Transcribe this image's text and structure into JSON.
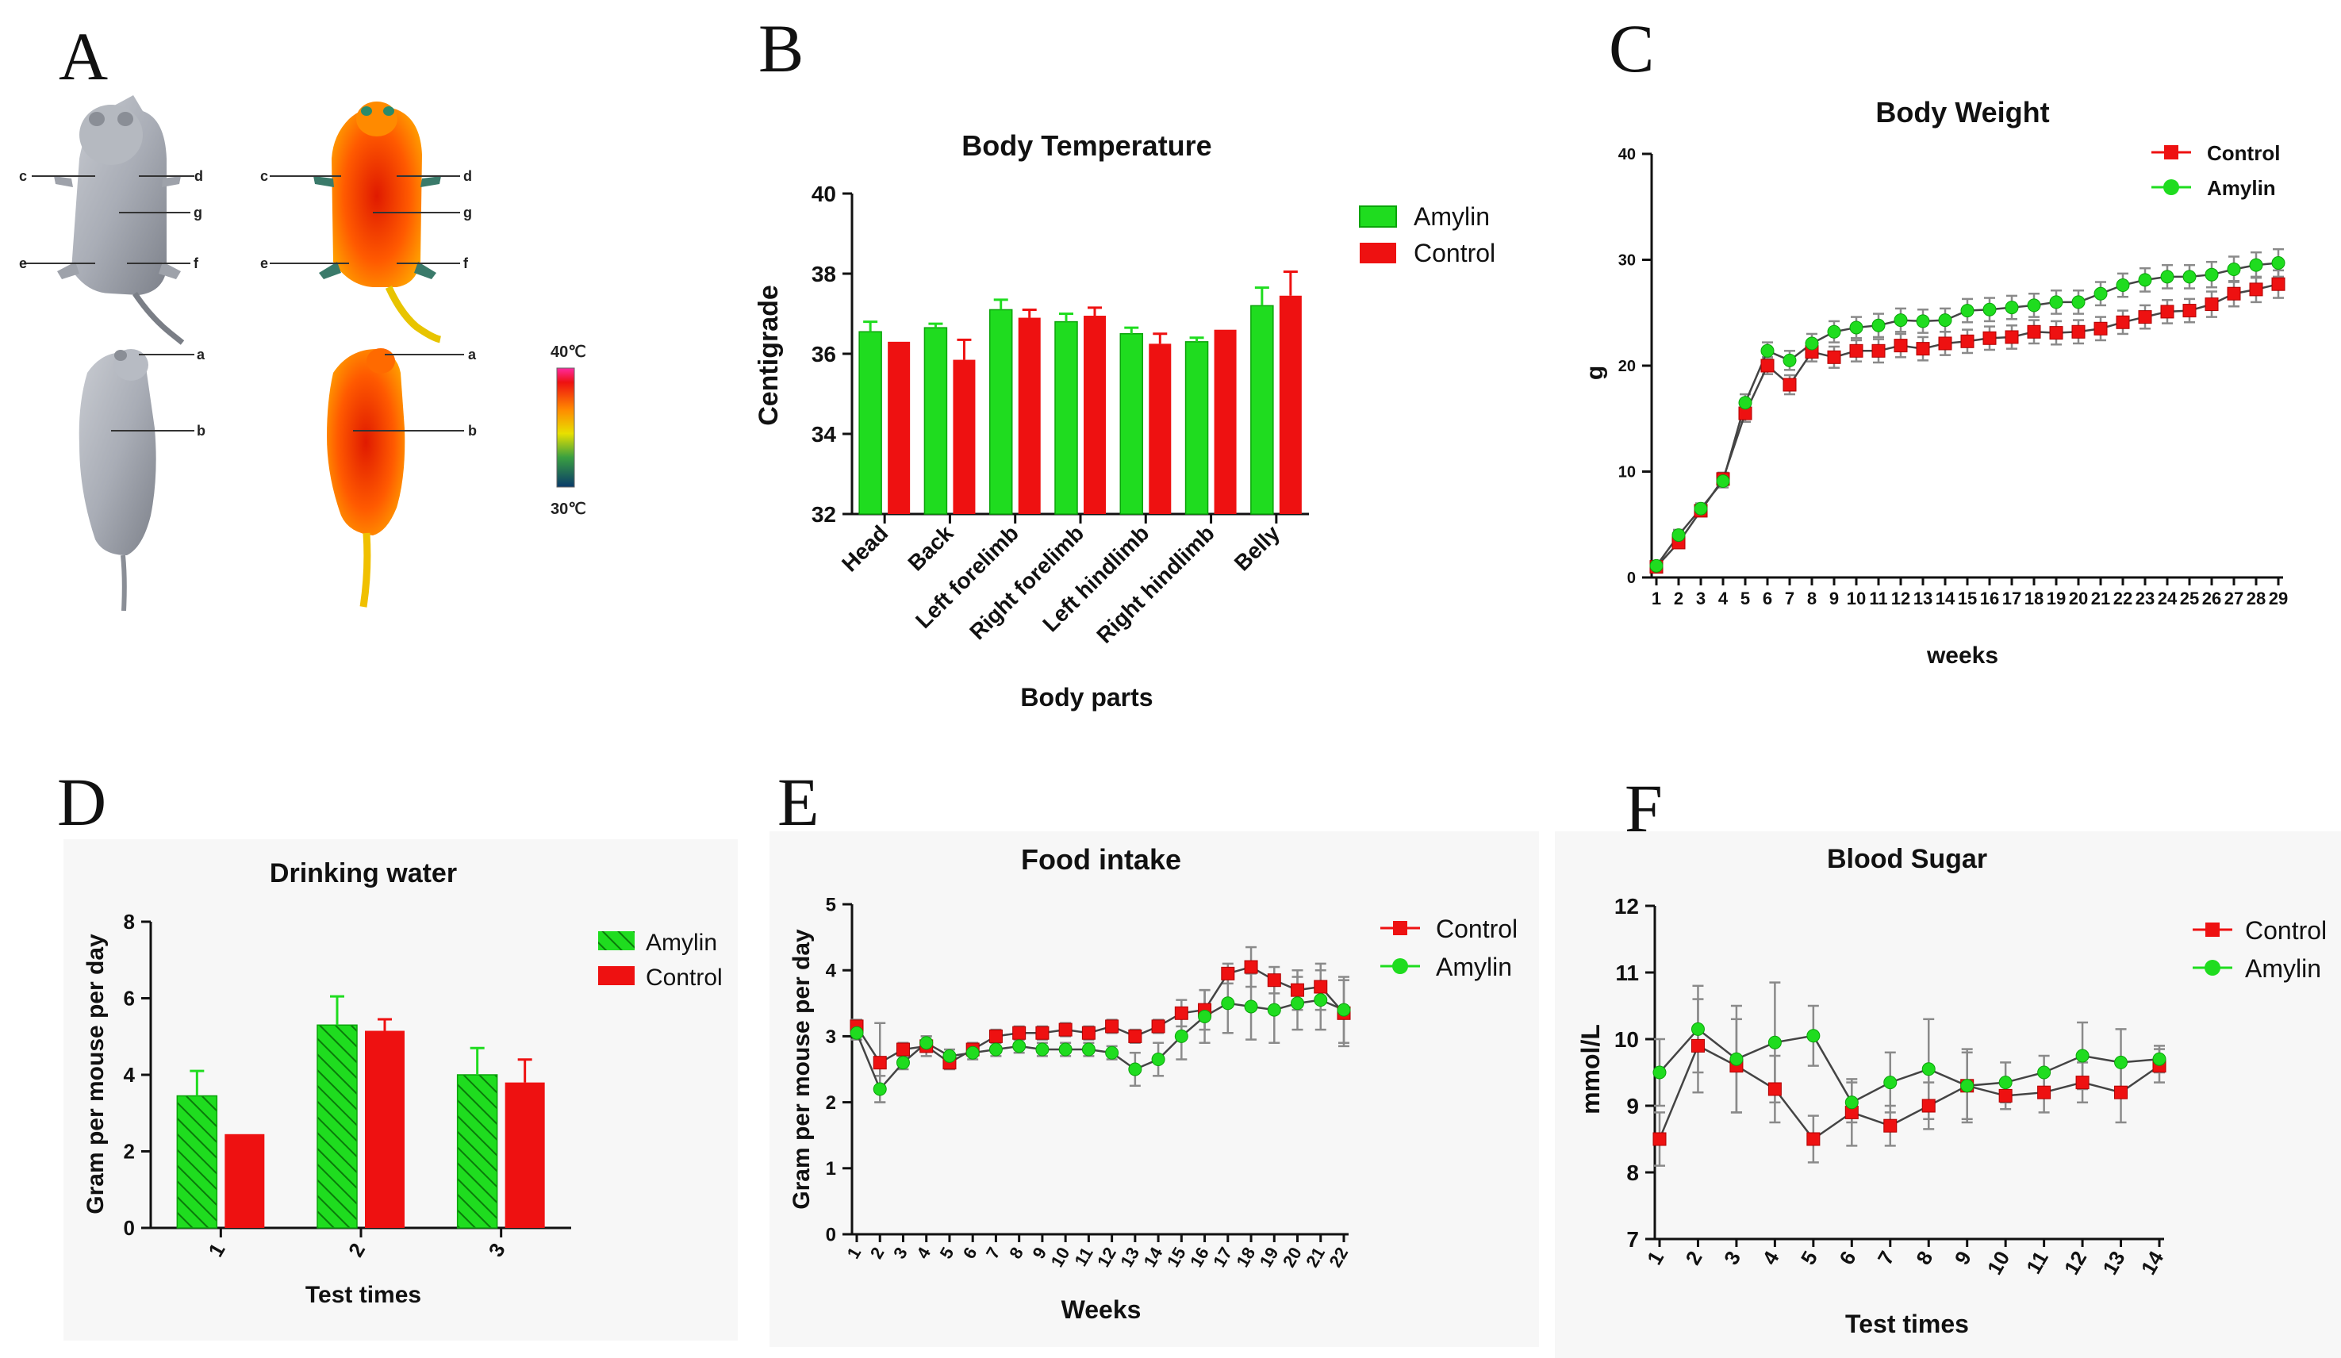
{
  "colors": {
    "amylin": "#1fdc1f",
    "control": "#ee1111",
    "amylin_dark": "#0aa40a",
    "control_dark": "#b00000",
    "line": "#444444"
  },
  "panel_letters": [
    "A",
    "B",
    "C",
    "D",
    "E",
    "F"
  ],
  "panel_a": {
    "markers_top": [
      "c",
      "d",
      "g",
      "e",
      "f"
    ],
    "markers_bottom": [
      "a",
      "b"
    ],
    "scale_max": "40℃",
    "scale_min": "30℃"
  },
  "chart_data": [
    {
      "id": "B",
      "type": "bar",
      "title": "Body Temperature",
      "xlabel": "Body parts",
      "ylabel": "Centigrade",
      "ylim": [
        32,
        40
      ],
      "yticks": [
        "32",
        "34",
        "36",
        "38",
        "40"
      ],
      "categories": [
        "Head",
        "Back",
        "Left forelimb",
        "Right forelimb",
        "Left hindlimb",
        "Right hindlimb",
        "Belly"
      ],
      "series": [
        {
          "name": "Amylin",
          "values": [
            36.55,
            36.65,
            37.1,
            36.8,
            36.5,
            36.3,
            37.2
          ],
          "errors": [
            0.25,
            0.1,
            0.25,
            0.2,
            0.15,
            0.1,
            0.45
          ]
        },
        {
          "name": "Control",
          "values": [
            36.3,
            35.85,
            36.9,
            36.95,
            36.25,
            36.6,
            37.45
          ],
          "errors": [
            0,
            0.5,
            0.2,
            0.2,
            0.25,
            0,
            0.6
          ]
        }
      ],
      "legend": [
        "Amylin",
        "Control"
      ]
    },
    {
      "id": "C",
      "type": "line",
      "title": "Body Weight",
      "xlabel": "weeks",
      "ylabel": "g",
      "ylim": [
        0,
        40
      ],
      "yticks": [
        "0",
        "10",
        "20",
        "30",
        "40"
      ],
      "x": [
        "1",
        "2",
        "3",
        "4",
        "5",
        "6",
        "7",
        "8",
        "9",
        "10",
        "11",
        "12",
        "13",
        "14",
        "15",
        "16",
        "17",
        "18",
        "19",
        "20",
        "21",
        "22",
        "23",
        "24",
        "25",
        "26",
        "27",
        "28",
        "29"
      ],
      "series": [
        {
          "name": "Control",
          "values": [
            1,
            3.3,
            6.3,
            9.3,
            15.5,
            20,
            18.2,
            21.3,
            20.8,
            21.4,
            21.4,
            21.9,
            21.6,
            22.1,
            22.3,
            22.6,
            22.7,
            23.2,
            23.1,
            23.2,
            23.5,
            24.1,
            24.6,
            25.1,
            25.2,
            25.8,
            26.8,
            27.2,
            27.7
          ],
          "errors": [
            0.3,
            0.5,
            0.5,
            0.6,
            0.8,
            0.8,
            0.9,
            0.9,
            1,
            1,
            1.1,
            1.1,
            1.1,
            1.1,
            1.1,
            1.1,
            1.1,
            1.1,
            1.1,
            1.1,
            1.1,
            1.1,
            1.1,
            1.1,
            1.1,
            1.2,
            1.2,
            1.2,
            1.3
          ]
        },
        {
          "name": "Amylin",
          "values": [
            1.1,
            4,
            6.5,
            9.1,
            16.5,
            21.4,
            20.5,
            22.1,
            23.2,
            23.6,
            23.8,
            24.3,
            24.2,
            24.3,
            25.2,
            25.3,
            25.5,
            25.7,
            26,
            26,
            26.8,
            27.6,
            28.1,
            28.4,
            28.4,
            28.6,
            29.1,
            29.5,
            29.7
          ],
          "errors": [
            0.3,
            0.5,
            0.5,
            0.6,
            0.8,
            0.8,
            0.9,
            0.9,
            1,
            1,
            1.1,
            1.1,
            1.1,
            1.1,
            1.1,
            1.1,
            1.1,
            1.1,
            1.1,
            1.1,
            1.1,
            1.1,
            1.1,
            1.1,
            1.1,
            1.2,
            1.2,
            1.2,
            1.3
          ]
        }
      ],
      "legend": [
        "Control",
        "Amylin"
      ]
    },
    {
      "id": "D",
      "type": "bar",
      "title": "Drinking water",
      "xlabel": "Test times",
      "ylabel": "Gram per mouse per day",
      "ylim": [
        0,
        8
      ],
      "yticks": [
        "0",
        "2",
        "4",
        "6",
        "8"
      ],
      "categories": [
        "1",
        "2",
        "3"
      ],
      "series": [
        {
          "name": "Amylin",
          "values": [
            3.45,
            5.3,
            4.0
          ],
          "errors": [
            0.65,
            0.75,
            0.7
          ]
        },
        {
          "name": "Control",
          "values": [
            2.45,
            5.15,
            3.8
          ],
          "errors": [
            0,
            0.3,
            0.6
          ]
        }
      ],
      "legend": [
        "Amylin",
        "Control"
      ]
    },
    {
      "id": "E",
      "type": "line",
      "title": "Food intake",
      "xlabel": "Weeks",
      "ylabel": "Gram per mouse per day",
      "ylim": [
        0,
        5
      ],
      "yticks": [
        "0",
        "1",
        "2",
        "3",
        "4",
        "5"
      ],
      "x": [
        "1",
        "2",
        "3",
        "4",
        "5",
        "6",
        "7",
        "8",
        "9",
        "10",
        "11",
        "12",
        "13",
        "14",
        "15",
        "16",
        "17",
        "18",
        "19",
        "20",
        "21",
        "22"
      ],
      "series": [
        {
          "name": "Control",
          "values": [
            3.15,
            2.6,
            2.8,
            2.85,
            2.6,
            2.8,
            3.0,
            3.05,
            3.05,
            3.1,
            3.05,
            3.15,
            3.0,
            3.15,
            3.35,
            3.4,
            3.95,
            4.05,
            3.85,
            3.7,
            3.75,
            3.35
          ],
          "errors": [
            0.1,
            0.6,
            0.1,
            0.15,
            0.1,
            0.1,
            0.1,
            0.1,
            0.1,
            0.1,
            0.1,
            0.1,
            0.1,
            0.1,
            0.2,
            0.3,
            0.15,
            0.3,
            0.2,
            0.3,
            0.35,
            0.5
          ]
        },
        {
          "name": "Amylin",
          "values": [
            3.05,
            2.2,
            2.6,
            2.9,
            2.7,
            2.75,
            2.8,
            2.85,
            2.8,
            2.8,
            2.8,
            2.75,
            2.5,
            2.65,
            3.0,
            3.3,
            3.5,
            3.45,
            3.4,
            3.5,
            3.55,
            3.4
          ],
          "errors": [
            0.1,
            0.2,
            0.1,
            0.1,
            0.1,
            0.1,
            0.1,
            0.1,
            0.1,
            0.1,
            0.1,
            0.1,
            0.25,
            0.25,
            0.35,
            0.4,
            0.45,
            0.5,
            0.5,
            0.4,
            0.45,
            0.5
          ]
        }
      ],
      "legend": [
        "Control",
        "Amylin"
      ]
    },
    {
      "id": "F",
      "type": "line",
      "title": "Blood Sugar",
      "xlabel": "Test times",
      "ylabel": "mmol/L",
      "ylim": [
        7,
        12
      ],
      "yticks": [
        "7",
        "8",
        "9",
        "10",
        "11",
        "12"
      ],
      "x": [
        "1",
        "2",
        "3",
        "4",
        "5",
        "6",
        "7",
        "8",
        "9",
        "10",
        "11",
        "12",
        "13",
        "14"
      ],
      "series": [
        {
          "name": "Control",
          "values": [
            8.5,
            9.9,
            9.6,
            9.25,
            8.5,
            8.9,
            8.7,
            9.0,
            9.3,
            9.15,
            9.2,
            9.35,
            9.2,
            9.6
          ],
          "errors": [
            0.4,
            0.7,
            0.7,
            0.5,
            0.35,
            0.5,
            0.3,
            0.35,
            0.5,
            0.2,
            0.3,
            0.3,
            0.45,
            0.25
          ]
        },
        {
          "name": "Amylin",
          "values": [
            9.5,
            10.15,
            9.7,
            9.95,
            10.05,
            9.05,
            9.35,
            9.55,
            9.3,
            9.35,
            9.5,
            9.75,
            9.65,
            9.7
          ],
          "errors": [
            0.5,
            0.65,
            0.8,
            0.9,
            0.45,
            0.3,
            0.45,
            0.75,
            0.55,
            0.3,
            0.25,
            0.5,
            0.5,
            0.2
          ]
        }
      ],
      "legend": [
        "Control",
        "Amylin"
      ]
    }
  ]
}
